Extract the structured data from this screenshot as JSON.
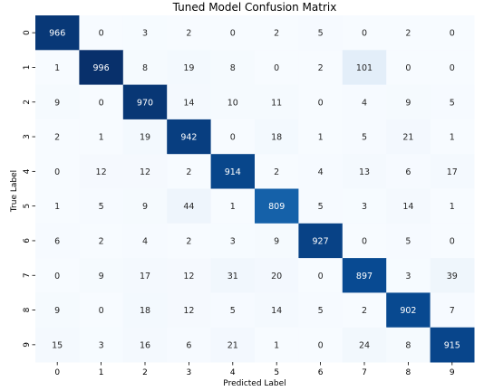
{
  "chart_data": {
    "type": "heatmap",
    "title": "Tuned Model Confusion Matrix",
    "xlabel": "Predicted Label",
    "ylabel": "True Label",
    "x_categories": [
      "0",
      "1",
      "2",
      "3",
      "4",
      "5",
      "6",
      "7",
      "8",
      "9"
    ],
    "y_categories": [
      "0",
      "1",
      "2",
      "3",
      "4",
      "5",
      "6",
      "7",
      "8",
      "9"
    ],
    "values": [
      [
        966,
        0,
        3,
        2,
        0,
        2,
        5,
        0,
        2,
        0
      ],
      [
        1,
        996,
        8,
        19,
        8,
        0,
        2,
        101,
        0,
        0
      ],
      [
        9,
        0,
        970,
        14,
        10,
        11,
        0,
        4,
        9,
        5
      ],
      [
        2,
        1,
        19,
        942,
        0,
        18,
        1,
        5,
        21,
        1
      ],
      [
        0,
        12,
        12,
        2,
        914,
        2,
        4,
        13,
        6,
        17
      ],
      [
        1,
        5,
        9,
        44,
        1,
        809,
        5,
        3,
        14,
        1
      ],
      [
        6,
        2,
        4,
        2,
        3,
        9,
        927,
        0,
        5,
        0
      ],
      [
        0,
        9,
        17,
        12,
        31,
        20,
        0,
        897,
        3,
        39
      ],
      [
        9,
        0,
        18,
        12,
        5,
        14,
        5,
        2,
        902,
        7
      ],
      [
        15,
        3,
        16,
        6,
        21,
        1,
        0,
        24,
        8,
        915
      ]
    ],
    "colormap": "Blues",
    "colorbar": false
  }
}
